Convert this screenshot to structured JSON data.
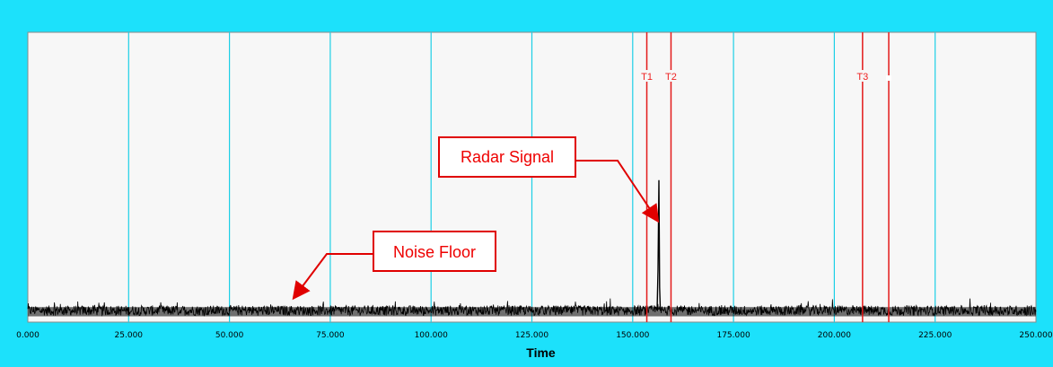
{
  "chart_data": {
    "type": "line",
    "xlabel": "Time",
    "title": "",
    "ylabel": "",
    "xlim": [
      0,
      250
    ],
    "x_ticks": [
      0,
      25,
      50,
      75,
      100,
      125,
      150,
      175,
      200,
      225,
      250
    ],
    "x_tick_labels": [
      "0.000",
      "25.000",
      "50.000",
      "75.000",
      "100.000",
      "125.000",
      "150.000",
      "175.000",
      "200.000",
      "225.000",
      "250.000"
    ],
    "ylim": [
      0,
      1
    ],
    "grid": true,
    "noise_floor_level": 0.04,
    "radar_pulse": {
      "x": 156.5,
      "peak": 0.49
    },
    "markers": [
      {
        "label": "T1",
        "x": 153.5
      },
      {
        "label": "T2",
        "x": 159.5
      },
      {
        "label": "T3",
        "x": 207.0
      },
      {
        "label": "",
        "x": 213.5
      }
    ],
    "annotations": [
      {
        "text": "Radar Signal",
        "points_to_x": 156.5
      },
      {
        "text": "Noise Floor",
        "points_to_x": 66
      }
    ]
  },
  "colors": {
    "frame": "#1ce1fb",
    "plot_bg": "#f7f7f7",
    "grid": "#1ccfe6",
    "trace": "#000000",
    "marker": "#e31b1b",
    "callout": "#e00000"
  }
}
